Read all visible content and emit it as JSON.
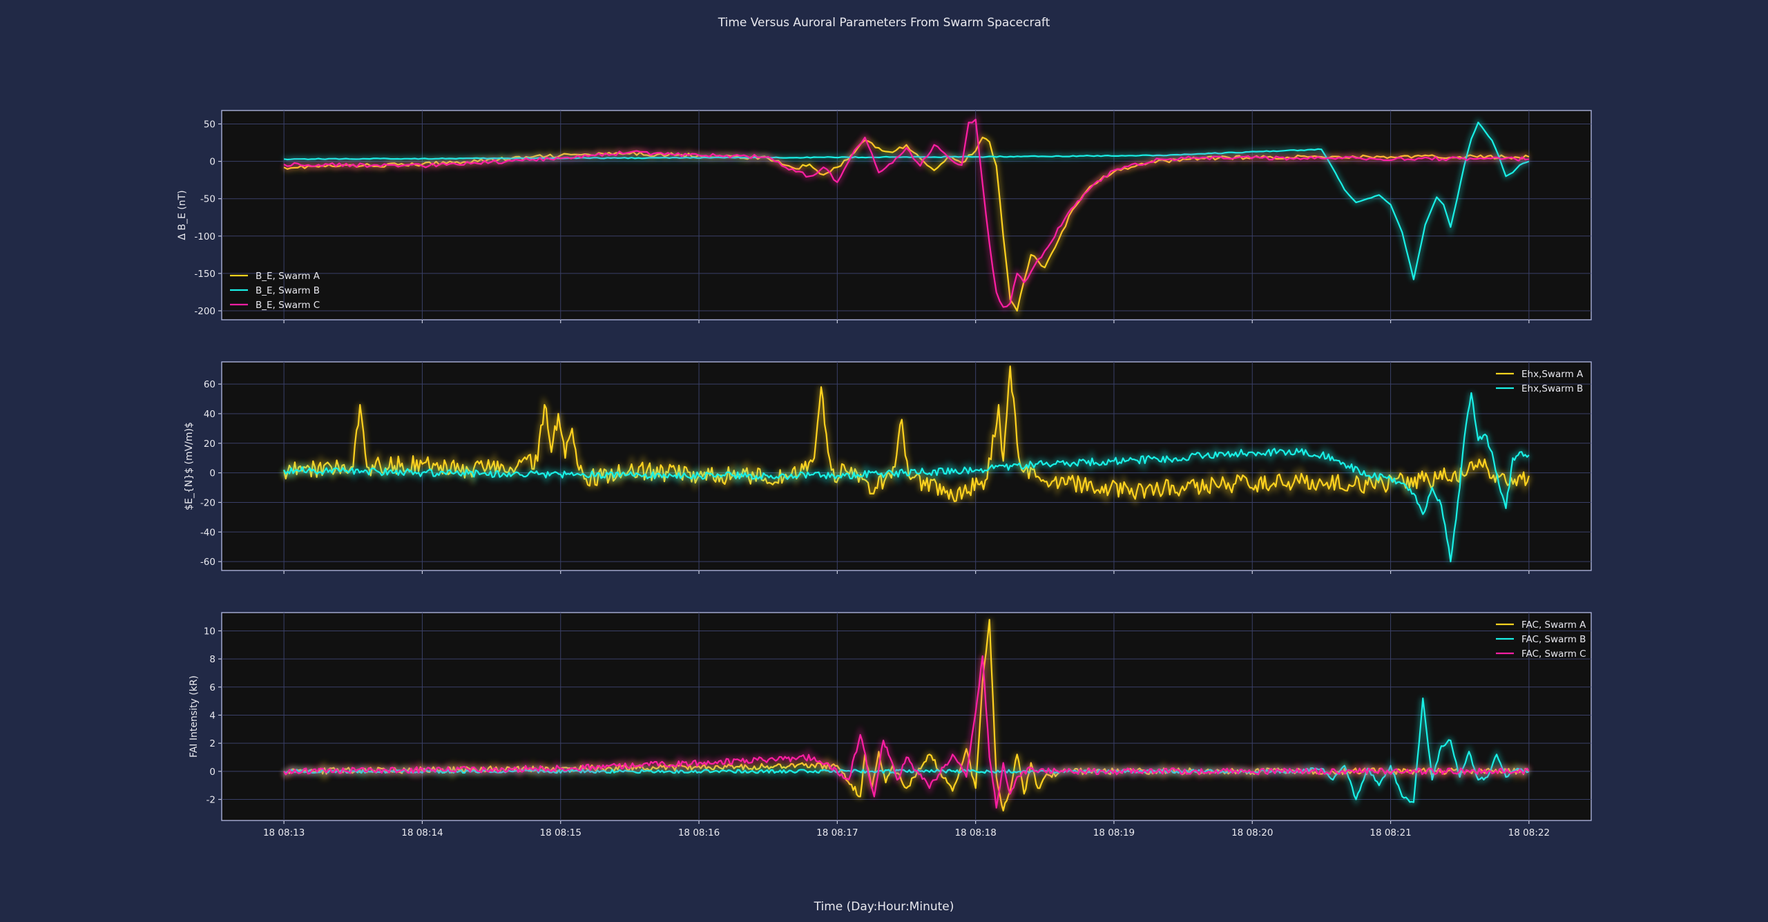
{
  "figure": {
    "title": "Time Versus Auroral Parameters From Swarm Spacecraft",
    "xlabel": "Time (Day:Hour:Minute)"
  },
  "colors": {
    "background": "#212946",
    "axes": "#111111",
    "swarm_a": "#FFD21F",
    "swarm_b": "#19F0E6",
    "swarm_c": "#FF1FA3",
    "baseline_a": "#ff3b3b",
    "baseline_c": "#9a9aa8"
  },
  "chart_data": [
    {
      "type": "line",
      "panel": "magnetic",
      "ylabel": "Δ  B_E  (nT)",
      "xlim": [
        "18 08:12:33",
        "18 08:22:27"
      ],
      "ylim": [
        -212,
        68
      ],
      "yticks": [
        50,
        0,
        -50,
        -100,
        -150,
        -200
      ],
      "xticks": [
        "18 08:13",
        "18 08:14",
        "18 08:15",
        "18 08:16",
        "18 08:17",
        "18 08:18",
        "18 08:19",
        "18 08:20",
        "18 08:21",
        "18 08:22"
      ],
      "legend": "lower-left",
      "series": [
        {
          "name": "B_E, Swarm A",
          "color": "#FFD21F",
          "x_seconds": [
            0,
            60,
            120,
            150,
            180,
            210,
            222,
            228,
            234,
            240,
            246,
            252,
            258,
            264,
            270,
            276,
            282,
            288,
            294,
            300,
            303,
            306,
            309,
            312,
            315,
            318,
            321,
            324,
            330,
            336,
            342,
            348,
            354,
            360,
            375,
            390,
            410,
            450,
            480,
            510,
            540
          ],
          "y": [
            -8,
            -4,
            8,
            10,
            8,
            4,
            -10,
            -4,
            -18,
            -8,
            8,
            28,
            18,
            12,
            22,
            4,
            -12,
            6,
            -2,
            14,
            32,
            26,
            -6,
            -100,
            -185,
            -200,
            -160,
            -125,
            -142,
            -105,
            -65,
            -40,
            -25,
            -14,
            -2,
            3,
            5,
            6,
            6,
            6,
            6
          ]
        },
        {
          "name": "B_E, Swarm B",
          "color": "#19F0E6",
          "x_seconds": [
            0,
            100,
            200,
            300,
            380,
            450,
            452,
            456,
            460,
            465,
            470,
            475,
            480,
            485,
            490,
            495,
            500,
            503,
            506,
            509,
            512,
            515,
            518,
            521,
            524,
            527,
            530,
            533,
            536,
            540
          ],
          "y": [
            3,
            4,
            5,
            6,
            8,
            16,
            6,
            -15,
            -38,
            -55,
            -50,
            -45,
            -58,
            -95,
            -158,
            -85,
            -48,
            -58,
            -88,
            -48,
            -5,
            30,
            52,
            40,
            28,
            6,
            -20,
            -15,
            -5,
            0
          ]
        },
        {
          "name": "B_E, Swarm C",
          "color": "#FF1FA3",
          "x_seconds": [
            0,
            60,
            120,
            150,
            180,
            210,
            216,
            222,
            228,
            234,
            240,
            246,
            252,
            258,
            264,
            270,
            276,
            282,
            288,
            294,
            297,
            300,
            303,
            306,
            309,
            312,
            315,
            318,
            321,
            330,
            340,
            350,
            360,
            380,
            400,
            450,
            540
          ],
          "y": [
            -4,
            -6,
            4,
            12,
            8,
            6,
            -6,
            -14,
            -20,
            -8,
            -28,
            6,
            32,
            -15,
            -2,
            18,
            -6,
            22,
            6,
            -5,
            52,
            56,
            -30,
            -110,
            -175,
            -195,
            -190,
            -150,
            -162,
            -120,
            -70,
            -35,
            -12,
            3,
            5,
            4,
            3
          ]
        }
      ]
    },
    {
      "type": "line",
      "panel": "electric",
      "ylabel": "$E_{N}$ (mV/m)$",
      "xlim": [
        "18 08:12:33",
        "18 08:22:27"
      ],
      "ylim": [
        -66,
        75
      ],
      "yticks": [
        60,
        40,
        20,
        0,
        -20,
        -40,
        -60
      ],
      "legend": "upper-right",
      "series": [
        {
          "name": "Ehx,Swarm A",
          "color": "#FFD21F",
          "x_seconds": [
            0,
            30,
            33,
            36,
            60,
            80,
            110,
            113,
            116,
            119,
            122,
            125,
            128,
            131,
            150,
            180,
            220,
            230,
            233,
            236,
            239,
            242,
            255,
            265,
            268,
            271,
            290,
            305,
            310,
            312,
            315,
            318,
            320,
            330,
            370,
            400,
            450,
            470,
            500,
            520,
            530,
            540
          ],
          "y": [
            2,
            4,
            46,
            4,
            6,
            2,
            8,
            46,
            14,
            40,
            10,
            30,
            2,
            -4,
            2,
            -2,
            -2,
            10,
            58,
            14,
            -6,
            6,
            -14,
            4,
            36,
            -2,
            -16,
            -4,
            46,
            8,
            72,
            20,
            2,
            -6,
            -12,
            -8,
            -6,
            -8,
            -4,
            4,
            -6,
            -2
          ]
        },
        {
          "name": "Ehx,Swarm B",
          "color": "#19F0E6",
          "x_seconds": [
            0,
            60,
            120,
            180,
            240,
            300,
            330,
            360,
            390,
            400,
            420,
            440,
            450,
            460,
            470,
            480,
            490,
            494,
            498,
            502,
            506,
            510,
            512,
            515,
            518,
            521,
            524,
            527,
            530,
            533,
            536,
            540
          ],
          "y": [
            2,
            0,
            -1,
            -2,
            -2,
            2,
            6,
            8,
            10,
            12,
            14,
            14,
            12,
            6,
            -2,
            -4,
            -14,
            -28,
            -10,
            -22,
            -60,
            -10,
            24,
            54,
            22,
            26,
            14,
            -8,
            -24,
            10,
            14,
            12
          ]
        }
      ]
    },
    {
      "type": "line",
      "panel": "fac",
      "ylabel": "FAI Intensity (kR)",
      "xlim": [
        "18 08:12:33",
        "18 08:22:27"
      ],
      "ylim": [
        -3.5,
        11.3
      ],
      "yticks": [
        10,
        8,
        6,
        4,
        2,
        0,
        -2
      ],
      "legend": "upper-right",
      "series": [
        {
          "name": "FAC, Swarm A",
          "color": "#FFD21F",
          "x_seconds": [
            0,
            120,
            240,
            250,
            252,
            255,
            258,
            261,
            264,
            270,
            280,
            290,
            296,
            300,
            303,
            306,
            309,
            312,
            315,
            318,
            321,
            324,
            327,
            330,
            340,
            360,
            540
          ],
          "y": [
            0,
            0.2,
            0.4,
            -1.8,
            1.2,
            -1.2,
            1.4,
            -0.8,
            0.4,
            -1.2,
            1.2,
            -1.4,
            1.6,
            -1.2,
            6.4,
            10.8,
            -0.4,
            -2.8,
            -1.4,
            1.2,
            -1.6,
            0.6,
            -1.2,
            -0.4,
            0,
            0,
            0
          ]
        },
        {
          "name": "FAC, Swarm B",
          "color": "#19F0E6",
          "x_seconds": [
            0,
            300,
            360,
            440,
            450,
            455,
            460,
            465,
            470,
            475,
            480,
            485,
            490,
            494,
            498,
            502,
            506,
            510,
            514,
            518,
            522,
            526,
            530,
            535,
            540
          ],
          "y": [
            0,
            0,
            0,
            0,
            0.2,
            -0.6,
            0.4,
            -2.0,
            0.2,
            -1.0,
            0.4,
            -1.8,
            -2.2,
            5.2,
            -0.6,
            1.8,
            2.2,
            -0.4,
            1.4,
            -0.6,
            -0.4,
            1.2,
            -0.4,
            0.2,
            0
          ]
        },
        {
          "name": "FAC, Swarm C",
          "color": "#FF1FA3",
          "x_seconds": [
            0,
            120,
            180,
            230,
            245,
            250,
            256,
            260,
            266,
            270,
            280,
            290,
            296,
            300,
            303,
            306,
            309,
            312,
            315,
            318,
            324,
            330,
            350,
            540
          ],
          "y": [
            0,
            0.2,
            0.6,
            1.0,
            -0.6,
            2.6,
            -1.8,
            2.2,
            -0.6,
            1.0,
            -1.2,
            1.2,
            -0.4,
            4.2,
            8.2,
            1.0,
            -2.6,
            0.6,
            -1.6,
            -0.4,
            0.2,
            0,
            0,
            0
          ]
        }
      ]
    }
  ]
}
